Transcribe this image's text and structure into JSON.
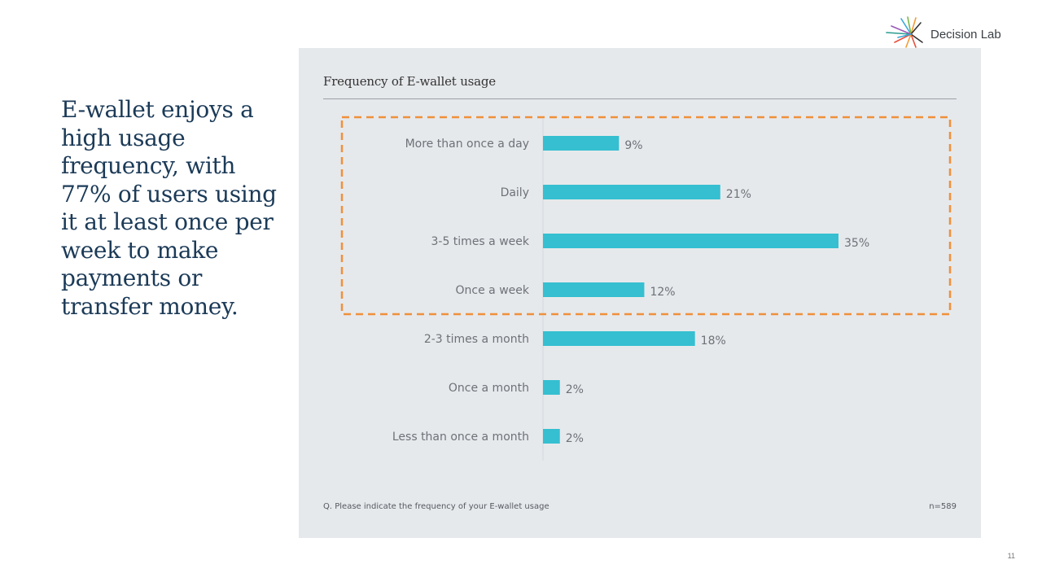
{
  "headline": "E-wallet enjoys a high usage frequency, with 77% of users using it at least once per week to make payments or transfer money.",
  "brand": {
    "name": "Decision Lab"
  },
  "chart_data": {
    "type": "bar",
    "orientation": "horizontal",
    "title": "Frequency of E-wallet usage",
    "categories": [
      "More than once a day",
      "Daily",
      "3-5 times a week",
      "Once a week",
      "2-3 times a month",
      "Once a month",
      "Less than once a month"
    ],
    "values": [
      9,
      21,
      35,
      12,
      18,
      2,
      2
    ],
    "value_labels": [
      "9%",
      "21%",
      "35%",
      "12%",
      "18%",
      "2%",
      "2%"
    ],
    "unit": "%",
    "xlim": [
      0,
      35
    ],
    "grid": false,
    "highlight": {
      "style": "dashed box",
      "categories": [
        "More than once a day",
        "Daily",
        "3-5 times a week",
        "Once a week"
      ]
    },
    "footnote": "Q. Please indicate the frequency of your E-wallet usage",
    "sample": "n=589"
  },
  "colors": {
    "bar": "#35bfd1",
    "highlight": "#f0903a",
    "headline": "#1b3a57",
    "panel": "#e6e9ec"
  },
  "page_number": "11"
}
